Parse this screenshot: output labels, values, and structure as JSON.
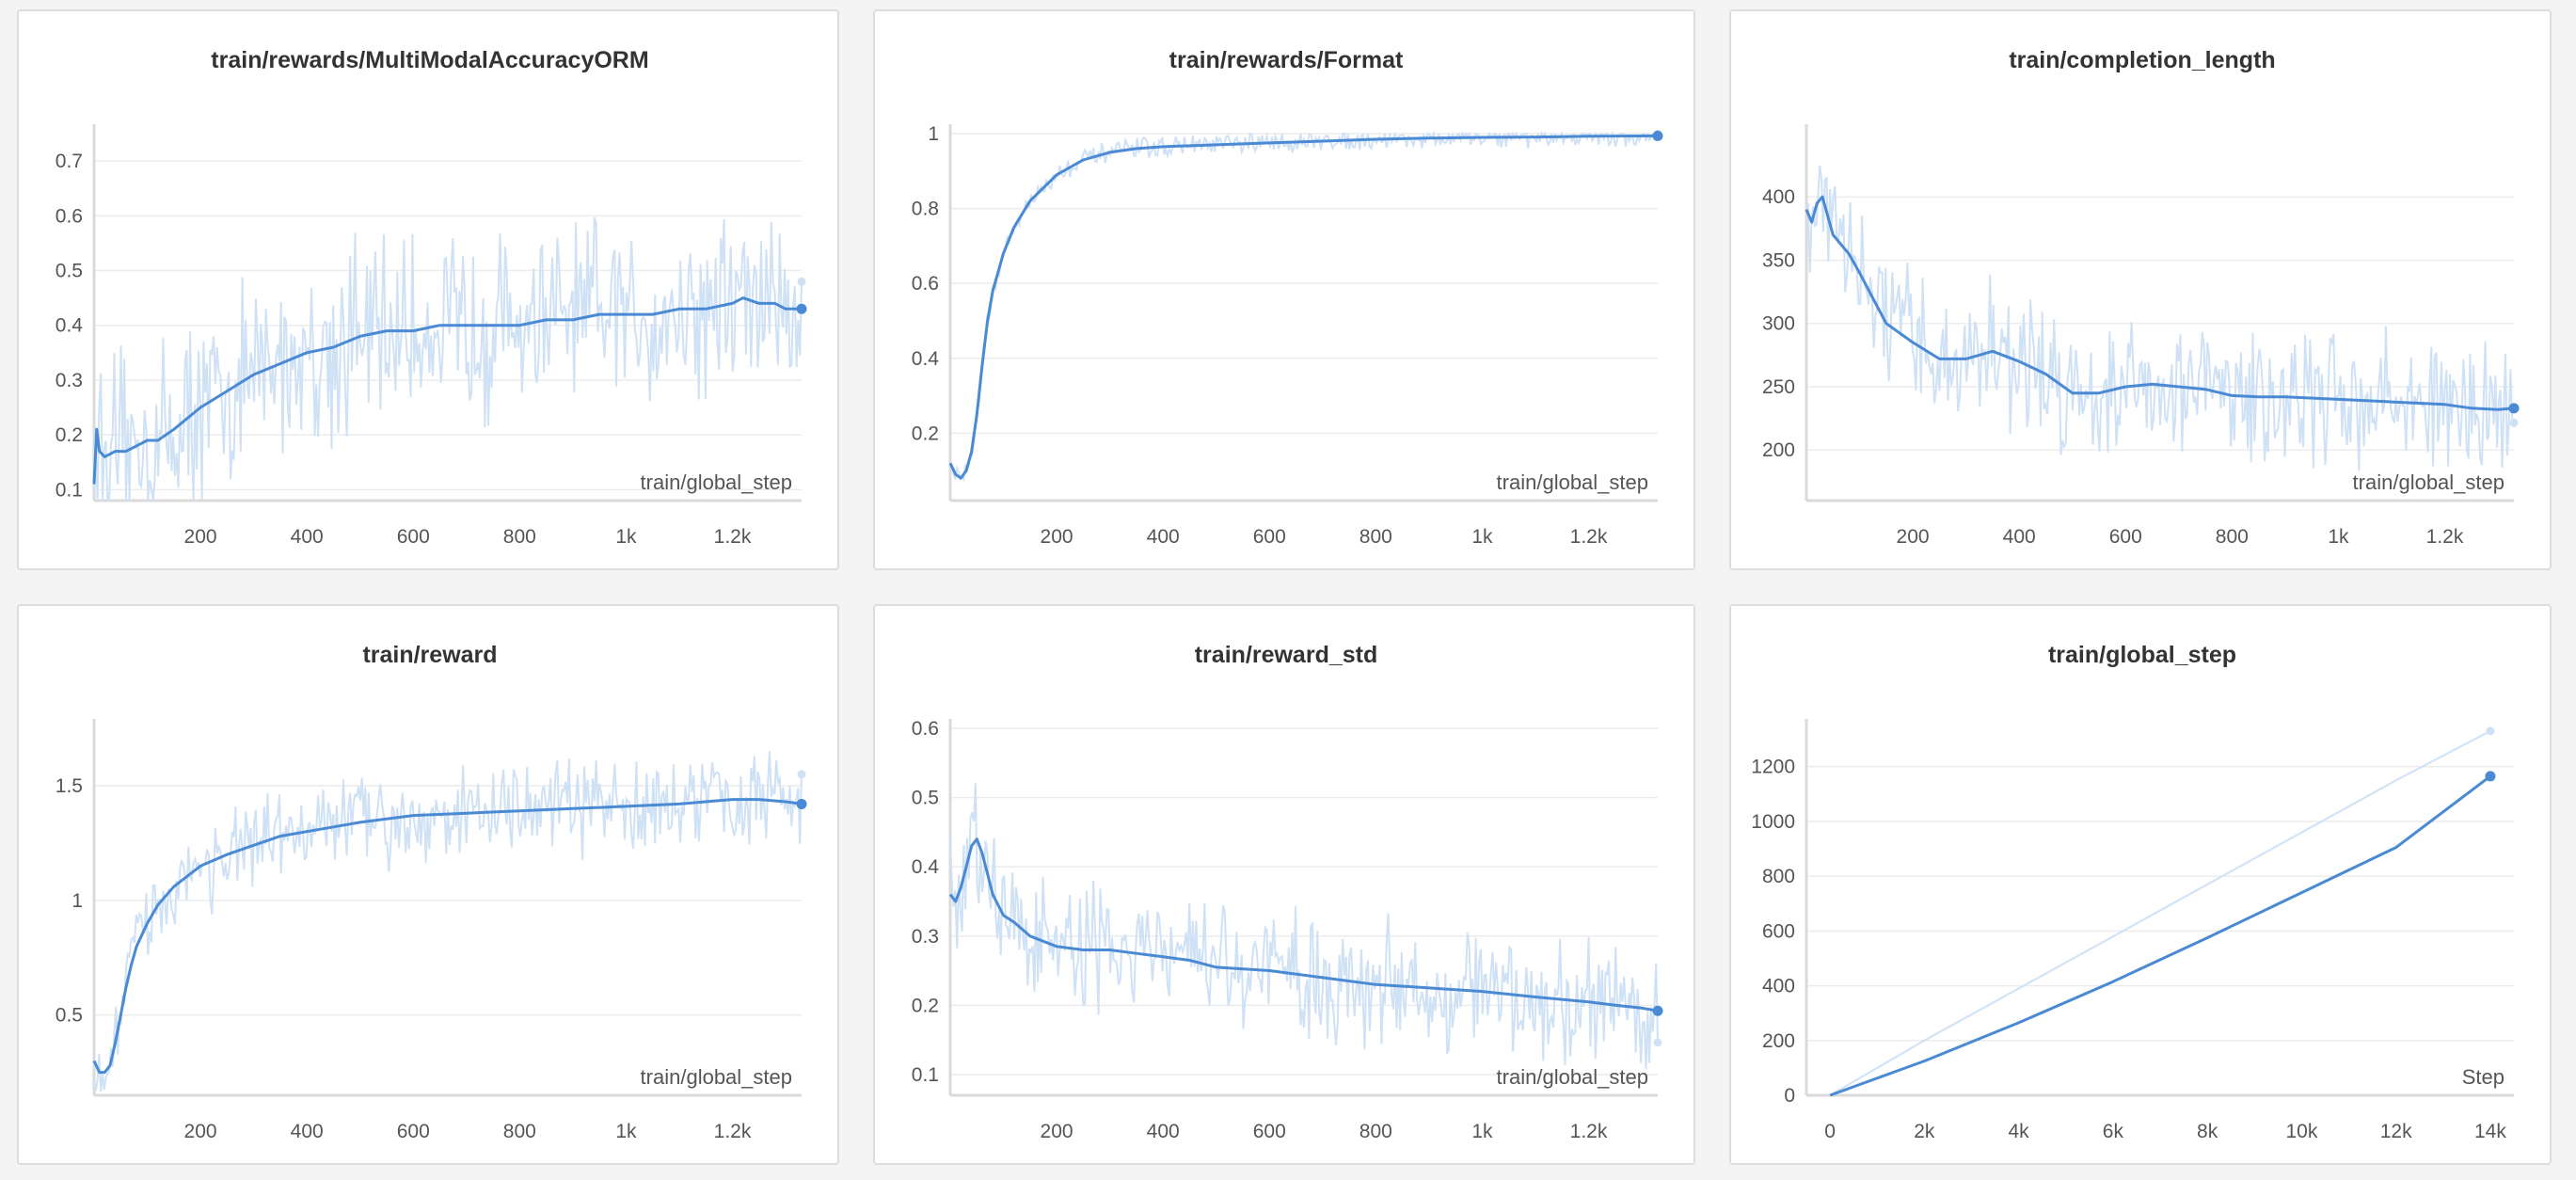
{
  "colors": {
    "main": "#4a8ad4",
    "raw": "#cfe1f5",
    "grid": "#ececec",
    "axis": "#dadada"
  },
  "chart_data": [
    {
      "type": "line",
      "title": "train/rewards/MultiModalAccuracyORM",
      "xlabel": "train/global_step",
      "ylabel": "",
      "xlim": [
        0,
        1330
      ],
      "ylim": [
        0.08,
        0.75
      ],
      "x_ticks": [
        200,
        400,
        600,
        800,
        1000,
        1200
      ],
      "x_tick_labels": [
        "200",
        "400",
        "600",
        "800",
        "1k",
        "1.2k"
      ],
      "y_ticks": [
        0.1,
        0.2,
        0.3,
        0.4,
        0.5,
        0.6,
        0.7
      ],
      "y_tick_labels": [
        "0.1",
        "0.2",
        "0.3",
        "0.4",
        "0.5",
        "0.6",
        "0.7"
      ],
      "grid": true,
      "raw_noise": 0.13,
      "series": [
        {
          "role": "smoothed",
          "x": [
            0,
            5,
            10,
            20,
            40,
            60,
            80,
            100,
            120,
            150,
            200,
            250,
            300,
            350,
            400,
            450,
            500,
            550,
            600,
            650,
            700,
            750,
            800,
            850,
            900,
            950,
            1000,
            1050,
            1100,
            1150,
            1200,
            1220,
            1250,
            1280,
            1300,
            1330
          ],
          "y": [
            0.11,
            0.21,
            0.17,
            0.16,
            0.17,
            0.17,
            0.18,
            0.19,
            0.19,
            0.21,
            0.25,
            0.28,
            0.31,
            0.33,
            0.35,
            0.36,
            0.38,
            0.39,
            0.39,
            0.4,
            0.4,
            0.4,
            0.4,
            0.41,
            0.41,
            0.42,
            0.42,
            0.42,
            0.43,
            0.43,
            0.44,
            0.45,
            0.44,
            0.44,
            0.43,
            0.43
          ]
        }
      ]
    },
    {
      "type": "line",
      "title": "train/rewards/Format",
      "xlabel": "train/global_step",
      "ylabel": "",
      "xlim": [
        0,
        1330
      ],
      "ylim": [
        0.02,
        1.0
      ],
      "x_ticks": [
        200,
        400,
        600,
        800,
        1000,
        1200
      ],
      "x_tick_labels": [
        "200",
        "400",
        "600",
        "800",
        "1k",
        "1.2k"
      ],
      "y_ticks": [
        0.2,
        0.4,
        0.6,
        0.8,
        1.0
      ],
      "y_tick_labels": [
        "0.2",
        "0.4",
        "0.6",
        "0.8",
        "1"
      ],
      "grid": true,
      "raw_noise": 0.02,
      "series": [
        {
          "role": "smoothed",
          "x": [
            0,
            10,
            20,
            30,
            40,
            50,
            60,
            70,
            80,
            100,
            120,
            150,
            200,
            250,
            300,
            350,
            400,
            500,
            600,
            700,
            800,
            900,
            1000,
            1100,
            1200,
            1330
          ],
          "y": [
            0.12,
            0.09,
            0.08,
            0.1,
            0.15,
            0.25,
            0.38,
            0.5,
            0.58,
            0.68,
            0.75,
            0.82,
            0.89,
            0.93,
            0.95,
            0.96,
            0.965,
            0.97,
            0.975,
            0.98,
            0.985,
            0.988,
            0.99,
            0.991,
            0.993,
            0.994
          ]
        }
      ]
    },
    {
      "type": "line",
      "title": "train/completion_length",
      "xlabel": "train/global_step",
      "ylabel": "",
      "xlim": [
        0,
        1330
      ],
      "ylim": [
        160,
        450
      ],
      "x_ticks": [
        200,
        400,
        600,
        800,
        1000,
        1200
      ],
      "x_tick_labels": [
        "200",
        "400",
        "600",
        "800",
        "1k",
        "1.2k"
      ],
      "y_ticks": [
        200,
        250,
        300,
        350,
        400
      ],
      "y_tick_labels": [
        "200",
        "250",
        "300",
        "350",
        "400"
      ],
      "grid": true,
      "raw_noise": 40,
      "series": [
        {
          "role": "smoothed",
          "x": [
            0,
            10,
            20,
            30,
            50,
            80,
            100,
            150,
            200,
            250,
            300,
            350,
            400,
            450,
            500,
            550,
            600,
            650,
            700,
            750,
            800,
            850,
            900,
            1000,
            1100,
            1200,
            1250,
            1300,
            1330
          ],
          "y": [
            390,
            380,
            395,
            400,
            370,
            355,
            340,
            300,
            285,
            272,
            272,
            278,
            270,
            260,
            245,
            245,
            250,
            252,
            250,
            248,
            243,
            242,
            242,
            240,
            238,
            236,
            233,
            232,
            233
          ]
        }
      ]
    },
    {
      "type": "line",
      "title": "train/reward",
      "xlabel": "train/global_step",
      "ylabel": "",
      "xlim": [
        0,
        1330
      ],
      "ylim": [
        0.15,
        1.75
      ],
      "x_ticks": [
        200,
        400,
        600,
        800,
        1000,
        1200
      ],
      "x_tick_labels": [
        "200",
        "400",
        "600",
        "800",
        "1k",
        "1.2k"
      ],
      "y_ticks": [
        0.5,
        1.0,
        1.5
      ],
      "y_tick_labels": [
        "0.5",
        "1",
        "1.5"
      ],
      "grid": true,
      "raw_noise": 0.15,
      "series": [
        {
          "role": "smoothed",
          "x": [
            0,
            10,
            20,
            30,
            40,
            50,
            60,
            70,
            80,
            100,
            120,
            150,
            200,
            250,
            300,
            350,
            400,
            500,
            600,
            700,
            800,
            900,
            1000,
            1100,
            1200,
            1250,
            1300,
            1330
          ],
          "y": [
            0.3,
            0.25,
            0.25,
            0.28,
            0.38,
            0.5,
            0.62,
            0.72,
            0.8,
            0.9,
            0.98,
            1.06,
            1.15,
            1.2,
            1.24,
            1.28,
            1.3,
            1.34,
            1.37,
            1.38,
            1.39,
            1.4,
            1.41,
            1.42,
            1.44,
            1.44,
            1.43,
            1.42
          ]
        }
      ]
    },
    {
      "type": "line",
      "title": "train/reward_std",
      "xlabel": "train/global_step",
      "ylabel": "",
      "xlim": [
        0,
        1330
      ],
      "ylim": [
        0.07,
        0.6
      ],
      "x_ticks": [
        200,
        400,
        600,
        800,
        1000,
        1200
      ],
      "x_tick_labels": [
        "200",
        "400",
        "600",
        "800",
        "1k",
        "1.2k"
      ],
      "y_ticks": [
        0.1,
        0.2,
        0.3,
        0.4,
        0.5,
        0.6
      ],
      "y_tick_labels": [
        "0.1",
        "0.2",
        "0.3",
        "0.4",
        "0.5",
        "0.6"
      ],
      "grid": true,
      "raw_noise": 0.07,
      "series": [
        {
          "role": "smoothed",
          "x": [
            0,
            10,
            20,
            30,
            40,
            50,
            60,
            70,
            80,
            100,
            120,
            150,
            200,
            250,
            300,
            350,
            400,
            450,
            500,
            600,
            700,
            800,
            900,
            1000,
            1100,
            1200,
            1250,
            1300,
            1330
          ],
          "y": [
            0.36,
            0.35,
            0.37,
            0.4,
            0.43,
            0.44,
            0.42,
            0.39,
            0.36,
            0.33,
            0.32,
            0.3,
            0.285,
            0.28,
            0.28,
            0.275,
            0.27,
            0.265,
            0.255,
            0.25,
            0.24,
            0.23,
            0.225,
            0.22,
            0.212,
            0.205,
            0.2,
            0.196,
            0.192
          ]
        }
      ]
    },
    {
      "type": "line",
      "title": "train/global_step",
      "xlabel": "Step",
      "ylabel": "",
      "xlim": [
        -500,
        14500
      ],
      "ylim": [
        0,
        1340
      ],
      "x_ticks": [
        0,
        2000,
        4000,
        6000,
        8000,
        10000,
        12000,
        14000
      ],
      "x_tick_labels": [
        "0",
        "2k",
        "4k",
        "6k",
        "8k",
        "10k",
        "12k",
        "14k"
      ],
      "y_ticks": [
        0,
        200,
        400,
        600,
        800,
        1000,
        1200
      ],
      "y_tick_labels": [
        "0",
        "200",
        "400",
        "600",
        "800",
        "1000",
        "1200"
      ],
      "grid": true,
      "raw_noise": 0,
      "series": [
        {
          "role": "raw",
          "x": [
            0,
            2000,
            4000,
            6000,
            8000,
            10000,
            12000,
            14000
          ],
          "y": [
            0,
            200,
            390,
            580,
            770,
            960,
            1150,
            1330
          ]
        },
        {
          "role": "smoothed",
          "x": [
            0,
            2000,
            4000,
            6000,
            8000,
            10000,
            12000,
            14000
          ],
          "y": [
            0,
            125,
            265,
            415,
            575,
            740,
            905,
            1165
          ]
        }
      ]
    }
  ]
}
